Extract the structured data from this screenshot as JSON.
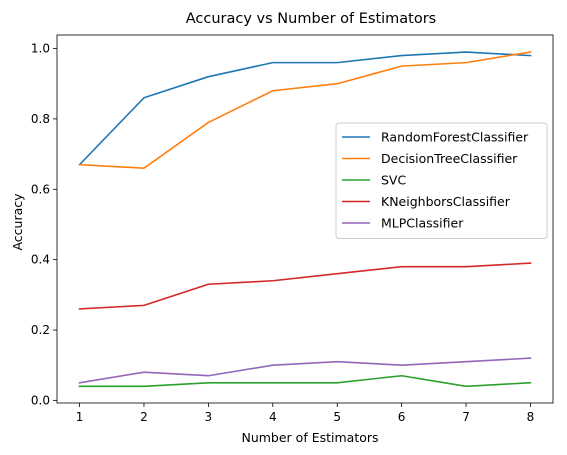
{
  "chart_data": {
    "type": "line",
    "title": "Accuracy vs Number of Estimators",
    "xlabel": "Number of Estimators",
    "ylabel": "Accuracy",
    "x": [
      1,
      2,
      3,
      4,
      5,
      6,
      7,
      8
    ],
    "xlim": [
      0.65,
      8.35
    ],
    "ylim": [
      -0.0075,
      1.0385
    ],
    "xticks": [
      1,
      2,
      3,
      4,
      5,
      6,
      7,
      8
    ],
    "yticks": [
      0.0,
      0.2,
      0.4,
      0.6,
      0.8,
      1.0
    ],
    "ytick_labels": [
      "0.0",
      "0.2",
      "0.4",
      "0.6",
      "0.8",
      "1.0"
    ],
    "grid": false,
    "legend_position": "center-right",
    "series": [
      {
        "name": "RandomForestClassifier",
        "color": "#1f77b4",
        "values": [
          0.67,
          0.86,
          0.92,
          0.96,
          0.96,
          0.98,
          0.99,
          0.98
        ]
      },
      {
        "name": "DecisionTreeClassifier",
        "color": "#ff7f0e",
        "values": [
          0.67,
          0.66,
          0.79,
          0.88,
          0.9,
          0.95,
          0.96,
          0.99
        ]
      },
      {
        "name": "SVC",
        "color": "#2ca02c",
        "values": [
          0.04,
          0.04,
          0.05,
          0.05,
          0.05,
          0.07,
          0.04,
          0.05
        ]
      },
      {
        "name": "KNeighborsClassifier",
        "color": "#d62728",
        "values": [
          0.26,
          0.27,
          0.33,
          0.34,
          0.36,
          0.38,
          0.38,
          0.39
        ]
      },
      {
        "name": "MLPClassifier",
        "color": "#9467bd",
        "values": [
          0.05,
          0.08,
          0.07,
          0.1,
          0.11,
          0.1,
          0.11,
          0.12
        ]
      }
    ]
  }
}
